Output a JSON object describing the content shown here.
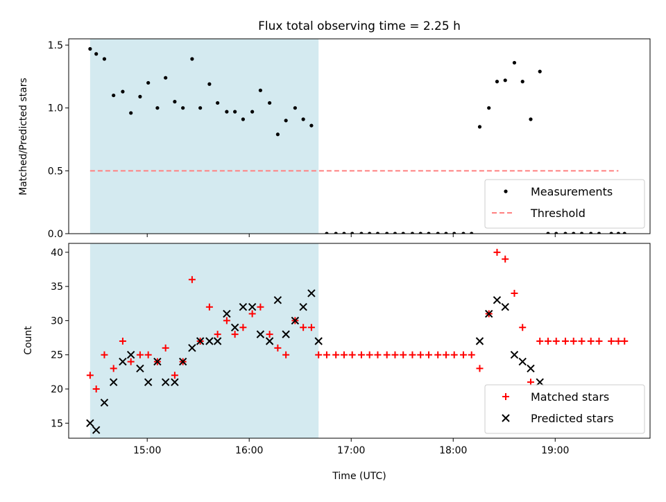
{
  "title": "Flux total observing time = 2.25 h",
  "chart_data": [
    {
      "type": "scatter",
      "ylabel": "Matched/Predicted stars",
      "xlim": [
        14.23,
        19.93
      ],
      "ylim": [
        0,
        1.55
      ],
      "yticks": [
        0.0,
        0.5,
        1.0,
        1.5
      ],
      "ytick_labels": [
        "0.0",
        "0.5",
        "1.0",
        "1.5"
      ],
      "shaded_span": [
        14.44,
        16.68
      ],
      "threshold": {
        "name": "Threshold",
        "y": 0.5,
        "x": [
          14.44,
          19.62
        ],
        "color": "#ff8080"
      },
      "legend_position": "lower-right",
      "series": [
        {
          "name": "Measurements",
          "color": "#000000",
          "x": [
            14.44,
            14.5,
            14.58,
            14.67,
            14.76,
            14.84,
            14.93,
            15.01,
            15.1,
            15.18,
            15.27,
            15.35,
            15.44,
            15.52,
            15.61,
            15.69,
            15.78,
            15.86,
            15.94,
            16.03,
            16.11,
            16.2,
            16.28,
            16.36,
            16.45,
            16.53,
            16.61,
            16.76,
            16.85,
            16.93,
            17.01,
            17.1,
            17.18,
            17.26,
            17.35,
            17.43,
            17.51,
            17.6,
            17.68,
            17.76,
            17.85,
            17.93,
            18.01,
            18.1,
            18.18,
            18.26,
            18.35,
            18.43,
            18.51,
            18.6,
            18.68,
            18.76,
            18.85,
            18.93,
            19.01,
            19.1,
            19.18,
            19.26,
            19.35,
            19.43,
            19.55,
            19.62,
            19.68
          ],
          "y": [
            1.47,
            1.43,
            1.39,
            1.1,
            1.13,
            0.96,
            1.09,
            1.2,
            1.0,
            1.24,
            1.05,
            1.0,
            1.39,
            1.0,
            1.19,
            1.04,
            0.97,
            0.97,
            0.91,
            0.97,
            1.14,
            1.04,
            0.79,
            0.9,
            1.0,
            0.91,
            0.86,
            0.0,
            0.0,
            0.0,
            0.0,
            0.0,
            0.0,
            0.0,
            0.0,
            0.0,
            0.0,
            0.0,
            0.0,
            0.0,
            0.0,
            0.0,
            0.0,
            0.0,
            0.0,
            0.85,
            1.0,
            1.21,
            1.22,
            1.36,
            1.21,
            0.91,
            1.29,
            0.0,
            0.0,
            0.0,
            0.0,
            0.0,
            0.0,
            0.0,
            0.0,
            0.0,
            0.0
          ]
        }
      ]
    },
    {
      "type": "scatter",
      "xlabel": "Time (UTC)",
      "ylabel": "Count",
      "xlim": [
        14.23,
        19.93
      ],
      "ylim": [
        12.8,
        41.3
      ],
      "yticks": [
        15,
        20,
        25,
        30,
        35,
        40
      ],
      "ytick_labels": [
        "15",
        "20",
        "25",
        "30",
        "35",
        "40"
      ],
      "xticks": [
        15,
        16,
        17,
        18,
        19
      ],
      "xtick_labels": [
        "15:00",
        "16:00",
        "17:00",
        "18:00",
        "19:00"
      ],
      "shaded_span": [
        14.44,
        16.68
      ],
      "legend_position": "lower-right",
      "series": [
        {
          "name": "Matched stars",
          "color": "#ff0000",
          "marker": "plus",
          "x": [
            14.44,
            14.5,
            14.58,
            14.67,
            14.76,
            14.84,
            14.93,
            15.01,
            15.1,
            15.18,
            15.27,
            15.35,
            15.44,
            15.52,
            15.61,
            15.69,
            15.78,
            15.86,
            15.94,
            16.03,
            16.11,
            16.2,
            16.28,
            16.36,
            16.45,
            16.53,
            16.61,
            16.68,
            16.76,
            16.85,
            16.93,
            17.01,
            17.1,
            17.18,
            17.26,
            17.35,
            17.43,
            17.51,
            17.6,
            17.68,
            17.76,
            17.85,
            17.93,
            18.01,
            18.1,
            18.18,
            18.26,
            18.35,
            18.43,
            18.51,
            18.6,
            18.68,
            18.76,
            18.85,
            18.93,
            19.01,
            19.1,
            19.18,
            19.26,
            19.35,
            19.43,
            19.55,
            19.62,
            19.68
          ],
          "y": [
            22,
            20,
            25,
            23,
            27,
            24,
            25,
            25,
            24,
            26,
            22,
            24,
            36,
            27,
            32,
            28,
            30,
            28,
            29,
            31,
            32,
            28,
            26,
            25,
            30,
            29,
            29,
            25,
            25,
            25,
            25,
            25,
            25,
            25,
            25,
            25,
            25,
            25,
            25,
            25,
            25,
            25,
            25,
            25,
            25,
            25,
            23,
            31,
            40,
            39,
            34,
            29,
            21,
            27,
            27,
            27,
            27,
            27,
            27,
            27,
            27,
            27,
            27,
            27
          ]
        },
        {
          "name": "Predicted stars",
          "color": "#000000",
          "marker": "x",
          "x": [
            14.44,
            14.5,
            14.58,
            14.67,
            14.76,
            14.84,
            14.93,
            15.01,
            15.1,
            15.18,
            15.27,
            15.35,
            15.44,
            15.52,
            15.61,
            15.69,
            15.78,
            15.86,
            15.94,
            16.03,
            16.11,
            16.2,
            16.28,
            16.36,
            16.45,
            16.53,
            16.61,
            16.68,
            18.26,
            18.35,
            18.43,
            18.51,
            18.6,
            18.68,
            18.76,
            18.85
          ],
          "y": [
            15,
            14,
            18,
            21,
            24,
            25,
            23,
            21,
            24,
            21,
            21,
            24,
            26,
            27,
            27,
            27,
            31,
            29,
            32,
            32,
            28,
            27,
            33,
            28,
            30,
            32,
            34,
            27,
            27,
            31,
            33,
            32,
            25,
            24,
            23,
            21
          ]
        }
      ]
    }
  ]
}
